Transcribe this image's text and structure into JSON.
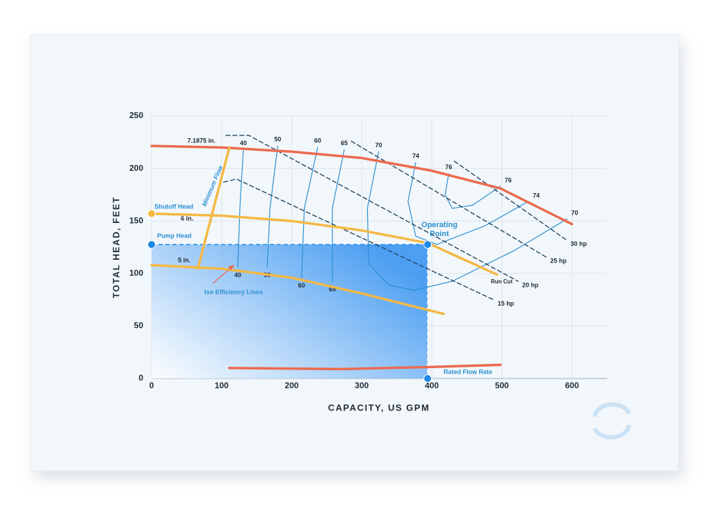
{
  "chart_data": {
    "type": "line",
    "xlabel": "CAPACITY, US GPM",
    "ylabel": "TOTAL HEAD, FEET",
    "xlim": [
      0,
      650
    ],
    "ylim": [
      0,
      250
    ],
    "xticks": [
      0,
      100,
      200,
      300,
      400,
      500,
      600
    ],
    "yticks": [
      0,
      50,
      100,
      150,
      200,
      250
    ],
    "grid": true,
    "series": [
      {
        "name": "7.1875 in.",
        "color": "#ec6a4f",
        "x": [
          0,
          101,
          200,
          300,
          399,
          498,
          600
        ],
        "values": [
          221.5,
          220,
          216,
          210,
          198,
          181,
          147
        ]
      },
      {
        "name": "6 in.",
        "color": "#f5b843",
        "x": [
          0,
          101,
          200,
          300,
          394,
          493
        ],
        "values": [
          157,
          155,
          150,
          141,
          129,
          99
        ]
      },
      {
        "name": "5 in.",
        "color": "#f5b843",
        "x": [
          0,
          101,
          200,
          300,
          417
        ],
        "values": [
          108,
          104.5,
          96,
          81,
          61.5
        ]
      },
      {
        "name": "Minimum Flow",
        "color": "#f5b843",
        "x": [
          66,
          111
        ],
        "values": [
          104.5,
          220
        ]
      },
      {
        "color": "#ec6a4f",
        "x": [
          111,
          270,
          399,
          498
        ],
        "values": [
          10,
          9,
          11,
          13
        ]
      }
    ],
    "efficiency_lines": [
      {
        "name": "40",
        "color": "#2b8fd1",
        "x": [
          131,
          126,
          123
        ],
        "values": [
          218,
          162,
          106
        ]
      },
      {
        "name": "50",
        "color": "#2b8fd1",
        "x": [
          180,
          169,
          165
        ],
        "values": [
          221.5,
          162,
          106
        ]
      },
      {
        "name": "60",
        "color": "#2b8fd1",
        "x": [
          237,
          218,
          214
        ],
        "values": [
          220,
          162,
          96
        ]
      },
      {
        "name": "65",
        "color": "#2b8fd1",
        "x": [
          275,
          258,
          258
        ],
        "values": [
          218,
          162,
          92.6
        ]
      },
      {
        "name": "70",
        "color": "#2b8fd1",
        "x": [
          324,
          308,
          310,
          339,
          374,
          429,
          518,
          593
        ],
        "values": [
          216,
          162,
          109,
          89,
          84,
          92.6,
          122,
          152
        ]
      },
      {
        "name": "74",
        "color": "#2b8fd1",
        "x": [
          377,
          366,
          377,
          407,
          476,
          538
        ],
        "values": [
          205.7,
          168.7,
          135.6,
          127.6,
          145.5,
          168.7
        ]
      },
      {
        "name": "76",
        "color": "#2b8fd1",
        "x": [
          424,
          419,
          429,
          458,
          498
        ],
        "values": [
          195,
          175,
          162,
          165,
          183
        ]
      }
    ],
    "power_lines": [
      {
        "name": "15 hp",
        "color": "#24475e",
        "x": [
          103,
          121,
          488
        ],
        "values": [
          187,
          190,
          75
        ]
      },
      {
        "name": "20 hp",
        "color": "#24475e",
        "x": [
          106,
          139,
          523
        ],
        "values": [
          231.5,
          231.5,
          92.6
        ]
      },
      {
        "name": "25 hp",
        "color": "#24475e",
        "x": [
          285,
          563
        ],
        "values": [
          226,
          115.7
        ]
      },
      {
        "name": "30 hp",
        "color": "#24475e",
        "x": [
          432,
          592
        ],
        "values": [
          207,
          132
        ]
      }
    ],
    "points": [
      {
        "label": "Shutoff Head",
        "x": 0,
        "y": 157,
        "color": "#f5b843"
      },
      {
        "label": "Pump Head",
        "x": 0,
        "y": 127.6,
        "color": "#1e88e5"
      },
      {
        "label": "Operating Point",
        "x": 394,
        "y": 127.6,
        "color": "#1e88e5"
      },
      {
        "label": "Rated Flow Rate",
        "x": 394,
        "y": 0,
        "color": "#1e88e5"
      }
    ],
    "annotations": [
      "Iso Efficiency Lines",
      "Run Cut"
    ]
  }
}
